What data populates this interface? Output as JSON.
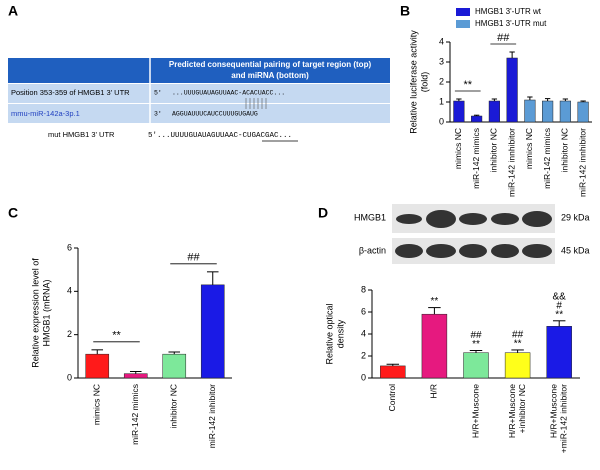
{
  "panel_a": {
    "panel": "A",
    "header": [
      "Predicted consequential pairing of target region (top)",
      "and miRNA (bottom)"
    ],
    "rows": [
      {
        "label": "Position 353-359 of HMGB1 3' UTR",
        "end": "5'",
        "sequence": "...UUUGUAUAGUUAAC-ACACUACC..."
      },
      {
        "label": "mmu-miR-142a-3p.1",
        "end": "3'",
        "sequence": "AGGUAUUUCAUCCUUUGUGAUG"
      }
    ],
    "mutant": {
      "label": "mut HMGB1 3' UTR",
      "sequence": "5'...UUUUGUAUAGUUAAC-CUGACGAC..."
    }
  },
  "blot": {
    "rows": [
      {
        "label": "HMGB1",
        "size": "29 kDa"
      },
      {
        "label": "β-actin",
        "size": "45 kDa"
      }
    ]
  },
  "chart_data": [
    {
      "panel": "B",
      "type": "bar",
      "ylabel": [
        "Relative luciferase activity",
        "(fold)"
      ],
      "categories": [
        "mimics NC",
        "miR-142 mimics",
        "inhibitor NC",
        "miR-142 innhibitor",
        "mimics NC",
        "miR-142 mimics",
        "inhibitor NC",
        "miR-142 innhibitor"
      ],
      "series": [
        {
          "name": "HMGB1 3'-UTR wt",
          "color": "#1a1ad6",
          "values": [
            1.05,
            0.3,
            1.05,
            3.2,
            null,
            null,
            null,
            null
          ],
          "errors": [
            0.1,
            0.04,
            0.1,
            0.3,
            null,
            null,
            null,
            null
          ]
        },
        {
          "name": "HMGB1 3'-UTR mut",
          "color": "#5b9bd5",
          "values": [
            null,
            null,
            null,
            null,
            1.1,
            1.05,
            1.05,
            1.0
          ],
          "errors": [
            null,
            null,
            null,
            null,
            0.15,
            0.12,
            0.1,
            0.05
          ]
        }
      ],
      "ylim": [
        0,
        4
      ],
      "yticks": [
        0,
        1,
        2,
        3,
        4
      ],
      "comparisons": [
        {
          "label": "**",
          "between": [
            0,
            1
          ]
        },
        {
          "label": "##",
          "between": [
            2,
            3
          ]
        }
      ]
    },
    {
      "panel": "C",
      "type": "bar",
      "ylabel": [
        "Relative expression level of",
        "HMGB1 (mRNA)"
      ],
      "categories": [
        "mimics NC",
        "miR-142 mimics",
        "inhibitor NC",
        "miR-142 inhibitor"
      ],
      "values": [
        1.1,
        0.2,
        1.1,
        4.3
      ],
      "errors": [
        0.2,
        0.1,
        0.1,
        0.6
      ],
      "colors": [
        "#ff1a1a",
        "#e6197f",
        "#7de89a",
        "#1a1ae6"
      ],
      "ylim": [
        0,
        6
      ],
      "yticks": [
        0,
        2,
        4,
        6
      ],
      "comparisons": [
        {
          "label": "**",
          "between": [
            0,
            1
          ]
        },
        {
          "label": "##",
          "between": [
            2,
            3
          ]
        }
      ]
    },
    {
      "panel": "D",
      "type": "bar",
      "ylabel": [
        "Relative optical",
        "density"
      ],
      "categories": [
        [
          "Control"
        ],
        [
          "H/R"
        ],
        [
          "H/R+Muscone"
        ],
        [
          "H/R+Muscone",
          "+inhibitor NC"
        ],
        [
          "H/R+Muscone",
          "+miR-142 inhibitor"
        ]
      ],
      "values": [
        1.1,
        5.8,
        2.3,
        2.3,
        4.7
      ],
      "errors": [
        0.15,
        0.6,
        0.2,
        0.25,
        0.5
      ],
      "colors": [
        "#ff1a1a",
        "#e6197f",
        "#7de89a",
        "#ffff1a",
        "#1a1ae6"
      ],
      "ylim": [
        0,
        8
      ],
      "yticks": [
        0,
        2,
        4,
        6,
        8
      ],
      "bar_annotations": [
        null,
        [
          "**"
        ],
        [
          "##",
          "**"
        ],
        [
          "##",
          "**"
        ],
        [
          "&&",
          "#",
          "**"
        ]
      ]
    }
  ]
}
